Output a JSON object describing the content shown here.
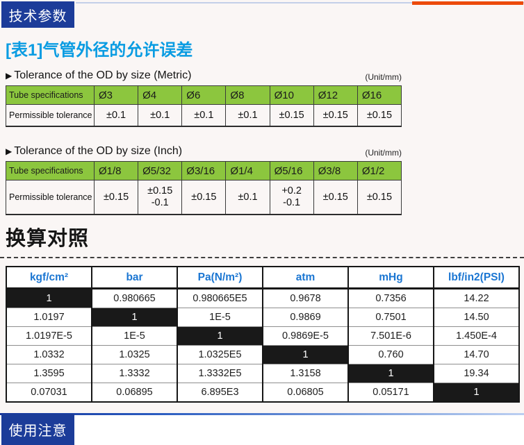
{
  "icons": {
    "triangle_bullet": "▶"
  },
  "colors": {
    "brand_dark_blue": "#1c3c99",
    "title_blue": "#0a9ce2",
    "green_header": "#8cc63e",
    "conv_header_blue": "#1b76d2",
    "accent_orange": "#ec4a0b",
    "diag_black": "#191919"
  },
  "top_header": {
    "label": "技术参数"
  },
  "section1": {
    "title": "[表1]气管外径的允许误差",
    "metric": {
      "caption": "Tolerance of the OD by size (Metric)",
      "unit": "(Unit/mm)",
      "header": [
        "Tube specifications",
        "Ø3",
        "Ø4",
        "Ø6",
        "Ø8",
        "Ø10",
        "Ø12",
        "Ø16"
      ],
      "row_label": "Permissible tolerance",
      "values": [
        "±0.1",
        "±0.1",
        "±0.1",
        "±0.1",
        "±0.15",
        "±0.15",
        "±0.15"
      ]
    },
    "inch": {
      "caption": "Tolerance of the OD by size (Inch)",
      "unit": "(Unit/mm)",
      "header": [
        "Tube specifications",
        "Ø1/8",
        "Ø5/32",
        "Ø3/16",
        "Ø1/4",
        "Ø5/16",
        "Ø3/8",
        "Ø1/2"
      ],
      "row_label": "Permissible tolerance",
      "values": [
        [
          "±0.15"
        ],
        [
          "±0.15",
          "-0.1"
        ],
        [
          "±0.15"
        ],
        [
          "±0.1"
        ],
        [
          "+0.2",
          "-0.1"
        ],
        [
          "±0.15"
        ],
        [
          "±0.15"
        ]
      ]
    }
  },
  "section2": {
    "title": "换算对照",
    "conversion_table": {
      "headers": [
        "kgf/cm²",
        "bar",
        "Pa(N/m²)",
        "atm",
        "mHg",
        "lbf/in2(PSI)"
      ],
      "rows": [
        [
          "1",
          "0.980665",
          "0.980665E5",
          "0.9678",
          "0.7356",
          "14.22"
        ],
        [
          "1.0197",
          "1",
          "1E-5",
          "0.9869",
          "0.7501",
          "14.50"
        ],
        [
          "1.0197E-5",
          "1E-5",
          "1",
          "0.9869E-5",
          "7.501E-6",
          "1.450E-4"
        ],
        [
          "1.0332",
          "1.0325",
          "1.0325E5",
          "1",
          "0.760",
          "14.70"
        ],
        [
          "1.3595",
          "1.3332",
          "1.3332E5",
          "1.3158",
          "1",
          "19.34"
        ],
        [
          "0.07031",
          "0.06895",
          "6.895E3",
          "0.06805",
          "0.05171",
          "1"
        ]
      ]
    }
  },
  "bottom_header": {
    "label": "使用注意"
  }
}
